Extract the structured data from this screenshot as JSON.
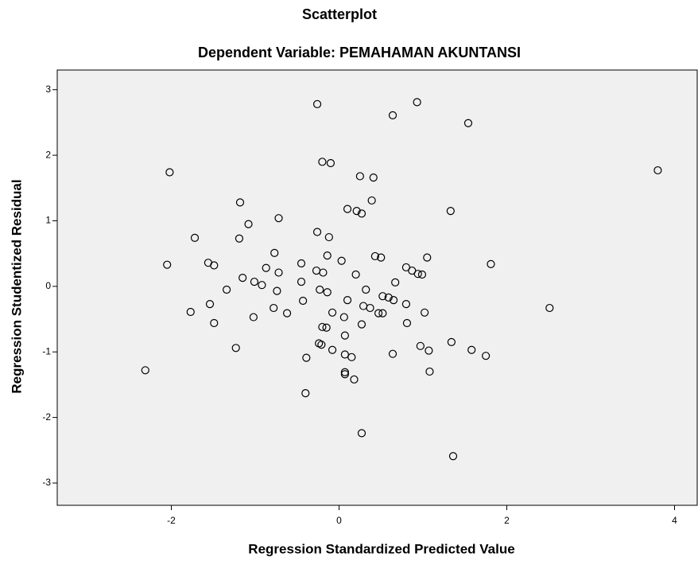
{
  "chart_data": {
    "type": "scatter",
    "title": "Scatterplot",
    "subtitle": "Dependent Variable: PEMAHAMAN AKUNTANSI",
    "x_label": "Regression Standardized Predicted Value",
    "y_label": "Regression Studentized Residual",
    "xlim": [
      -3.36,
      4.27
    ],
    "ylim": [
      -3.34,
      3.3
    ],
    "xticks": [
      -2,
      0,
      2,
      4
    ],
    "yticks": [
      -3,
      -2,
      -1,
      0,
      1,
      2,
      3
    ],
    "color": "#000000",
    "background": "#f0f0f0",
    "x": [
      -0.26,
      0.64,
      0.93,
      1.54,
      3.8,
      -2.02,
      -0.2,
      -0.1,
      0.25,
      0.41,
      -1.18,
      0.39,
      0.1,
      0.21,
      0.27,
      -1.08,
      -0.72,
      1.33,
      -1.72,
      -1.19,
      -0.12,
      -0.26,
      -0.77,
      -0.14,
      0.03,
      0.43,
      0.5,
      -1.56,
      -1.49,
      1.05,
      1.81,
      -2.05,
      -0.87,
      -0.45,
      -0.27,
      0.8,
      -0.72,
      -0.19,
      0.2,
      0.87,
      0.94,
      0.99,
      -1.15,
      -1.01,
      -0.45,
      -0.92,
      0.67,
      -1.34,
      0.32,
      -0.23,
      -0.14,
      -0.74,
      0.52,
      0.59,
      0.65,
      -1.54,
      -0.43,
      0.1,
      -1.77,
      -0.78,
      -0.62,
      0.29,
      0.8,
      -1.49,
      -1.02,
      -0.08,
      0.47,
      0.52,
      1.02,
      2.51,
      0.06,
      0.37,
      0.27,
      0.81,
      -0.2,
      -0.15,
      0.07,
      -0.24,
      -0.21,
      -1.23,
      -0.08,
      0.97,
      1.34,
      1.58,
      1.75,
      1.07,
      0.07,
      0.15,
      0.64,
      -0.39,
      -2.31,
      0.07,
      0.07,
      1.08,
      0.18,
      -0.4,
      0.27,
      1.36
    ],
    "values": [
      2.78,
      2.61,
      2.81,
      2.49,
      1.77,
      1.74,
      1.9,
      1.88,
      1.68,
      1.66,
      1.28,
      1.31,
      1.18,
      1.15,
      1.11,
      0.95,
      1.04,
      1.15,
      0.74,
      0.73,
      0.75,
      0.83,
      0.51,
      0.47,
      0.39,
      0.46,
      0.44,
      0.36,
      0.32,
      0.44,
      0.34,
      0.33,
      0.28,
      0.35,
      0.24,
      0.29,
      0.21,
      0.21,
      0.18,
      0.24,
      0.19,
      0.18,
      0.13,
      0.07,
      0.07,
      0.02,
      0.06,
      -0.05,
      -0.05,
      -0.05,
      -0.09,
      -0.07,
      -0.15,
      -0.17,
      -0.21,
      -0.27,
      -0.22,
      -0.21,
      -0.39,
      -0.33,
      -0.41,
      -0.3,
      -0.27,
      -0.56,
      -0.47,
      -0.4,
      -0.41,
      -0.41,
      -0.4,
      -0.33,
      -0.47,
      -0.33,
      -0.58,
      -0.56,
      -0.62,
      -0.63,
      -0.75,
      -0.87,
      -0.89,
      -0.94,
      -0.97,
      -0.91,
      -0.85,
      -0.97,
      -1.06,
      -0.98,
      -1.04,
      -1.08,
      -1.03,
      -1.09,
      -1.28,
      -1.31,
      -1.34,
      -1.3,
      -1.42,
      -1.63,
      -2.24,
      -2.59
    ]
  }
}
